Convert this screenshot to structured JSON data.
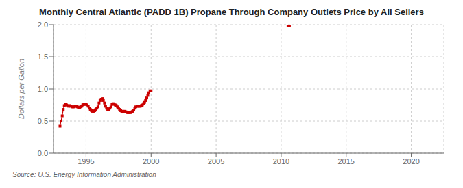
{
  "chart_data": {
    "type": "line",
    "title": "Monthly Central Atlantic (PADD 1B) Propane Through Company Outlets Price by All Sellers",
    "ylabel": "Dollars per Gallon",
    "annotation": "Source: U.S. Energy Information Administration",
    "x": [
      1993.0,
      1993.08,
      1993.17,
      1993.25,
      1993.33,
      1993.42,
      1993.5,
      1993.58,
      1993.67,
      1993.75,
      1993.83,
      1993.92,
      1994.0,
      1994.08,
      1994.17,
      1994.25,
      1994.33,
      1994.42,
      1994.5,
      1994.58,
      1994.67,
      1994.75,
      1994.83,
      1994.92,
      1995.0,
      1995.08,
      1995.17,
      1995.25,
      1995.33,
      1995.42,
      1995.5,
      1995.58,
      1995.67,
      1995.75,
      1995.83,
      1995.92,
      1996.0,
      1996.08,
      1996.17,
      1996.25,
      1996.33,
      1996.42,
      1996.5,
      1996.58,
      1996.67,
      1996.75,
      1996.83,
      1996.92,
      1997.0,
      1997.08,
      1997.17,
      1997.25,
      1997.33,
      1997.42,
      1997.5,
      1997.58,
      1997.67,
      1997.75,
      1997.83,
      1997.92,
      1998.0,
      1998.08,
      1998.17,
      1998.25,
      1998.33,
      1998.42,
      1998.5,
      1998.58,
      1998.67,
      1998.75,
      1998.83,
      1998.92,
      1999.0,
      1999.08,
      1999.17,
      1999.25,
      1999.33,
      1999.42,
      1999.5,
      1999.58,
      1999.67,
      1999.75,
      1999.83,
      1999.92,
      2000.0,
      2010.58
    ],
    "series": [
      {
        "type": "line",
        "marker": "square",
        "color": "#cc0000",
        "values": [
          0.42,
          0.5,
          0.58,
          0.68,
          0.74,
          0.76,
          0.75,
          0.74,
          0.73,
          0.74,
          0.73,
          0.72,
          0.72,
          0.72,
          0.73,
          0.73,
          0.72,
          0.71,
          0.71,
          0.72,
          0.73,
          0.75,
          0.76,
          0.76,
          0.76,
          0.75,
          0.73,
          0.7,
          0.68,
          0.66,
          0.65,
          0.65,
          0.66,
          0.68,
          0.7,
          0.72,
          0.78,
          0.82,
          0.84,
          0.85,
          0.82,
          0.78,
          0.73,
          0.7,
          0.68,
          0.68,
          0.7,
          0.72,
          0.76,
          0.77,
          0.76,
          0.75,
          0.74,
          0.72,
          0.7,
          0.68,
          0.66,
          0.65,
          0.65,
          0.65,
          0.65,
          0.64,
          0.63,
          0.63,
          0.63,
          0.63,
          0.64,
          0.65,
          0.67,
          0.7,
          0.72,
          0.73,
          0.73,
          0.73,
          0.73,
          0.74,
          0.75,
          0.77,
          0.79,
          0.82,
          0.86,
          0.9,
          0.94,
          0.97,
          0.97,
          null
        ]
      },
      {
        "type": "scatter",
        "marker": "square",
        "color": "#cc0000",
        "values": [
          null,
          null,
          null,
          null,
          null,
          null,
          null,
          null,
          null,
          null,
          null,
          null,
          null,
          null,
          null,
          null,
          null,
          null,
          null,
          null,
          null,
          null,
          null,
          null,
          null,
          null,
          null,
          null,
          null,
          null,
          null,
          null,
          null,
          null,
          null,
          null,
          null,
          null,
          null,
          null,
          null,
          null,
          null,
          null,
          null,
          null,
          null,
          null,
          null,
          null,
          null,
          null,
          null,
          null,
          null,
          null,
          null,
          null,
          null,
          null,
          null,
          null,
          null,
          null,
          null,
          null,
          null,
          null,
          null,
          null,
          null,
          null,
          null,
          null,
          null,
          null,
          null,
          null,
          null,
          null,
          null,
          null,
          null,
          null,
          null,
          2.0
        ]
      }
    ],
    "xlim": [
      1992.5,
      2022.5
    ],
    "xticks": [
      1995,
      2000,
      2005,
      2010,
      2015,
      2020
    ],
    "ylim": [
      0.0,
      2.0
    ],
    "yticks": [
      {
        "value": 0.0,
        "label": "0.0"
      },
      0.5,
      {
        "value": 1.0,
        "label": "1.0"
      },
      1.5,
      {
        "value": 2.0,
        "label": "2.0"
      }
    ],
    "grid": true
  }
}
